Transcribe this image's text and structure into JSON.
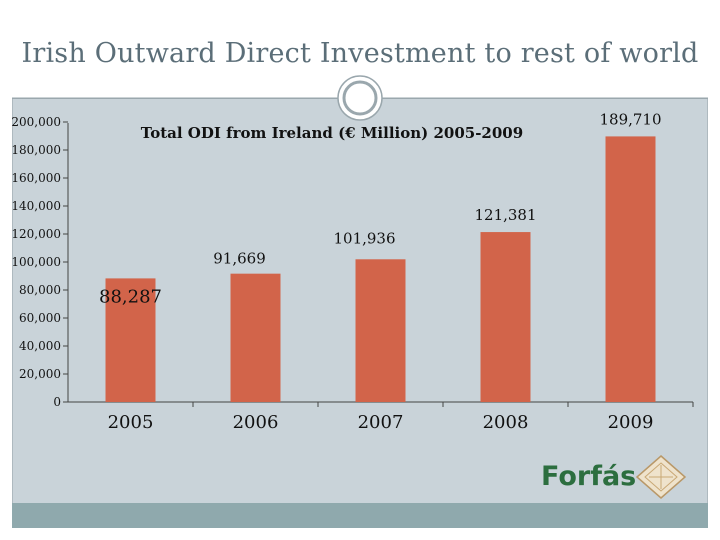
{
  "slide": {
    "title": "Irish Outward Direct Investment to rest of world"
  },
  "chart_data": {
    "type": "bar",
    "title": "Total ODI from Ireland (€ Million) 2005-2009",
    "categories": [
      "2005",
      "2006",
      "2007",
      "2008",
      "2009"
    ],
    "values": [
      88287,
      91669,
      101936,
      121381,
      189710
    ],
    "value_labels": [
      "88,287",
      "91,669",
      "101,936",
      "121,381",
      "189,710"
    ],
    "ylim": [
      0,
      200000
    ],
    "yticks": [
      0,
      20000,
      40000,
      60000,
      80000,
      100000,
      120000,
      140000,
      160000,
      180000,
      200000
    ],
    "ytick_labels": [
      "0",
      "20,000",
      "40,000",
      "60,000",
      "80,000",
      "100,000",
      "120,000",
      "140,000",
      "160,000",
      "180,000",
      "200,000"
    ],
    "xlabel": "",
    "ylabel": "",
    "grid": false,
    "bar_color": "#d2644a"
  },
  "logo": {
    "text": "Forfás"
  }
}
